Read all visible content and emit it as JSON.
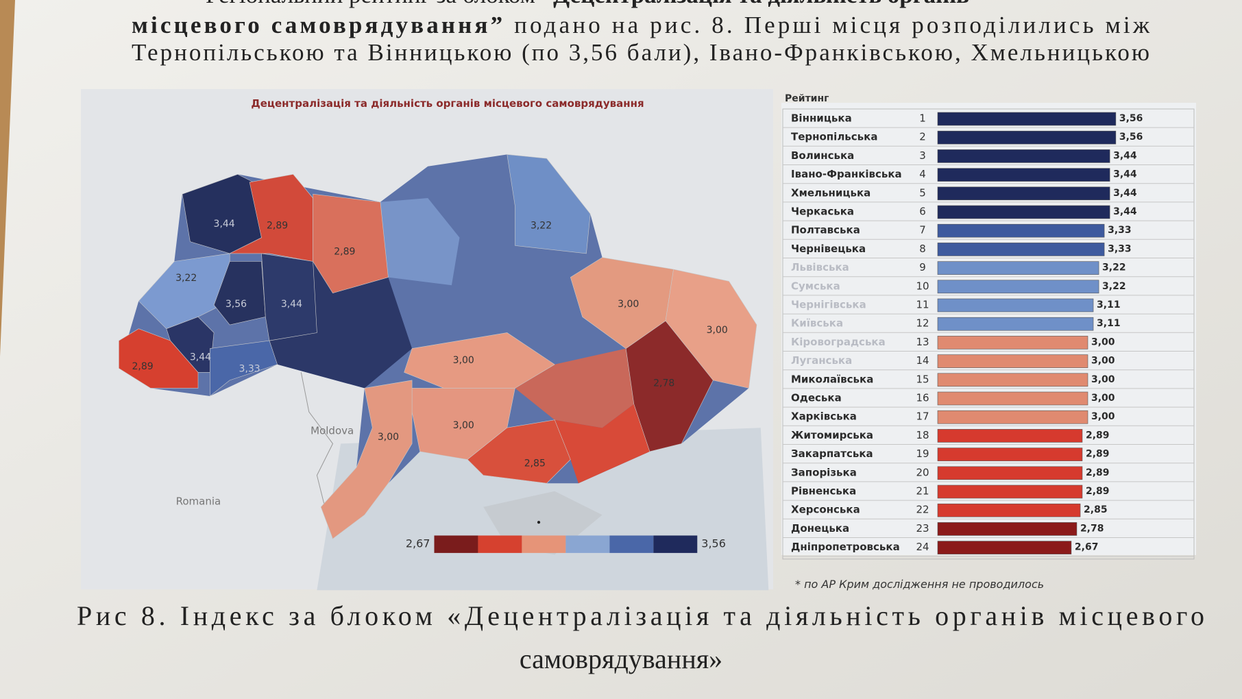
{
  "document": {
    "lines": [
      [
        "Регіональний рейтинг за блоком ",
        "“Децентралізація та діяльність органів"
      ],
      [
        "місцевого самоврядування”",
        " подано на рис. 8. Перші місця розподілились між"
      ],
      [
        "Тернопільською та Вінницькою (по 3,56 бали), Івано-Франківською, Хмельницькою"
      ]
    ],
    "caption": [
      "Рис 8. Індекс за блоком «Децентралізація та діяльність органів місцевого",
      "самоврядування»"
    ],
    "footnote": "* по АР Крим дослідження не проводилось"
  },
  "chart_data": [
    {
      "type": "map",
      "title": "Децентралізація та діяльність органів місцевого самоврядування",
      "place_labels": [
        "Moldova",
        "Romania"
      ],
      "values": [
        3.44,
        2.89,
        2.89,
        3.22,
        3.22,
        3.56,
        3.44,
        2.89,
        3.44,
        3.33,
        3.0,
        3.0,
        3.0,
        3.0,
        3.0,
        2.78,
        2.85
      ],
      "value_labels": [
        "3,44",
        "2,89",
        "2,89",
        "3,22",
        "3,22",
        "3,56",
        "3,44",
        "2,89",
        "3,44",
        "3,33",
        "3,00",
        "3,00",
        "3,00",
        "3,00",
        "3,00",
        "2,78",
        "2,85"
      ],
      "colors": [
        "#25305e",
        "#d24a3a",
        "#d9705c",
        "#6f8fc6",
        "#7c9ad0",
        "#27325f",
        "#2d3a6b",
        "#d6402f",
        "#2a3566",
        "#4a67a8",
        "#e39a80",
        "#e8a088",
        "#e69a82",
        "#e49680",
        "#e39880",
        "#8c2a2a",
        "#d8503c"
      ],
      "scale_min": 2.67,
      "scale_max": 3.56,
      "scale_labels": [
        "2,67",
        "3,56"
      ],
      "scale_colors": [
        "#7a1c1c",
        "#d6412f",
        "#e69478",
        "#8aa6d2",
        "#4a67a8",
        "#1f2a5c"
      ]
    },
    {
      "type": "bar",
      "orientation": "horizontal",
      "title": "Рейтинг",
      "categories": [
        "Вінницька",
        "Тернопільська",
        "Волинська",
        "Івано-Франківська",
        "Хмельницька",
        "Черкаська",
        "Полтавська",
        "Чернівецька",
        "Львівська",
        "Сумська",
        "Чернігівська",
        "Київська",
        "Кіровоградська",
        "Луганська",
        "Миколаївська",
        "Одеська",
        "Харківська",
        "Житомирська",
        "Закарпатська",
        "Запорізька",
        "Рівненська",
        "Херсонська",
        "Донецька",
        "Дніпропетровська"
      ],
      "ranks": [
        1,
        2,
        3,
        4,
        5,
        6,
        7,
        8,
        9,
        10,
        11,
        12,
        13,
        14,
        15,
        16,
        17,
        18,
        19,
        20,
        21,
        22,
        23,
        24
      ],
      "values": [
        3.56,
        3.56,
        3.44,
        3.44,
        3.44,
        3.44,
        3.33,
        3.33,
        3.22,
        3.22,
        3.11,
        3.11,
        3.0,
        3.0,
        3.0,
        3.0,
        3.0,
        2.89,
        2.89,
        2.89,
        2.89,
        2.85,
        2.78,
        2.67
      ],
      "value_labels": [
        "3,56",
        "3,56",
        "3,44",
        "3,44",
        "3,44",
        "3,44",
        "3,33",
        "3,33",
        "3,22",
        "3,22",
        "3,11",
        "3,11",
        "3,00",
        "3,00",
        "3,00",
        "3,00",
        "3,00",
        "2,89",
        "2,89",
        "2,89",
        "2,89",
        "2,85",
        "2,78",
        "2,67"
      ],
      "colors": [
        "#1f2a5c",
        "#1f2a5c",
        "#1f2a5c",
        "#1f2a5c",
        "#1f2a5c",
        "#1f2a5c",
        "#3e5a9e",
        "#3e5a9e",
        "#6f90c8",
        "#6f90c8",
        "#6f90c8",
        "#6f90c8",
        "#e08a70",
        "#e08a70",
        "#e08a70",
        "#e08a70",
        "#e08a70",
        "#d63a2e",
        "#d63a2e",
        "#d63a2e",
        "#d63a2e",
        "#d63a2e",
        "#8b1a1a",
        "#8b1a1a"
      ]
    }
  ]
}
